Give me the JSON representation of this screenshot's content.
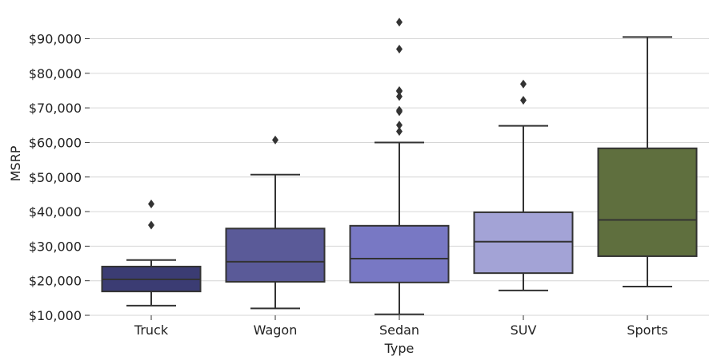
{
  "chart_data": {
    "type": "box",
    "xlabel": "Type",
    "ylabel": "MSRP",
    "ylim": [
      10000,
      95000
    ],
    "y_ticks": [
      10000,
      20000,
      30000,
      40000,
      50000,
      60000,
      70000,
      80000,
      90000
    ],
    "y_tick_labels": [
      "$10,000",
      "$20,000",
      "$30,000",
      "$40,000",
      "$50,000",
      "$60,000",
      "$70,000",
      "$80,000",
      "$90,000"
    ],
    "grid": "horizontal",
    "categories": [
      "Truck",
      "Wagon",
      "Sedan",
      "SUV",
      "Sports"
    ],
    "boxes": [
      {
        "category": "Truck",
        "color": "#3b3c73",
        "whisker_low": 12800,
        "q1": 16900,
        "median": 20400,
        "q3": 24100,
        "whisker_high": 26000,
        "outliers": [
          36100,
          42200
        ]
      },
      {
        "category": "Wagon",
        "color": "#5a5a98",
        "whisker_low": 12000,
        "q1": 19700,
        "median": 25500,
        "q3": 35100,
        "whisker_high": 50700,
        "outliers": [
          60700
        ]
      },
      {
        "category": "Sedan",
        "color": "#7878c4",
        "whisker_low": 10300,
        "q1": 19500,
        "median": 26400,
        "q3": 35900,
        "whisker_high": 60000,
        "outliers": [
          63200,
          65000,
          68900,
          69300,
          73300,
          74800,
          75000,
          87000,
          94800
        ]
      },
      {
        "category": "SUV",
        "color": "#a3a3d6",
        "whisker_low": 17200,
        "q1": 22200,
        "median": 31300,
        "q3": 39800,
        "whisker_high": 64800,
        "outliers": [
          72200,
          76900
        ]
      },
      {
        "category": "Sports",
        "color": "#5f6f3e",
        "whisker_low": 18300,
        "q1": 27100,
        "median": 37600,
        "q3": 58300,
        "whisker_high": 90500,
        "outliers": []
      }
    ]
  }
}
